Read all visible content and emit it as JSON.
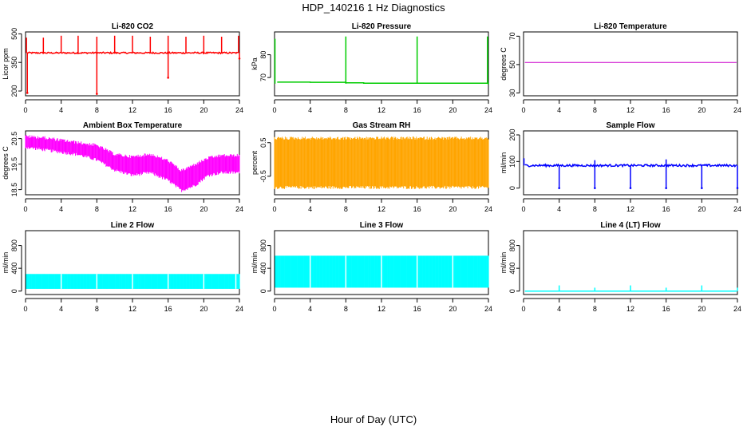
{
  "figure": {
    "title": "HDP_140216  1 Hz Diagnostics",
    "xlabel": "Hour of Day (UTC)"
  },
  "chart_data": [
    {
      "type": "line",
      "title": "Li-820 CO2",
      "ylabel": "Licor ppm",
      "color": "#ff0000",
      "xlim": [
        0,
        24
      ],
      "ylim": [
        175,
        510
      ],
      "xticks": [
        0,
        4,
        8,
        12,
        16,
        20,
        24
      ],
      "yticks": [
        200,
        350,
        500
      ],
      "ytick_labels": [
        "200",
        "350",
        "500"
      ],
      "baseline": 400,
      "noise": 4,
      "spikes": [
        [
          0.1,
          480
        ],
        [
          2.0,
          480
        ],
        [
          4.0,
          490
        ],
        [
          5.9,
          490
        ],
        [
          8.0,
          485
        ],
        [
          10.0,
          490
        ],
        [
          12.0,
          490
        ],
        [
          14.0,
          485
        ],
        [
          16.0,
          490
        ],
        [
          18.0,
          485
        ],
        [
          20.0,
          490
        ],
        [
          22.0,
          485
        ],
        [
          23.9,
          490
        ]
      ],
      "dips": [
        [
          0.2,
          190
        ],
        [
          8.0,
          185
        ],
        [
          16.0,
          270
        ],
        [
          24.0,
          370
        ]
      ]
    },
    {
      "type": "line",
      "title": "Li-820 Pressure",
      "ylabel": "kPa",
      "color": "#00cc00",
      "xlim": [
        0,
        24
      ],
      "ylim": [
        62,
        90
      ],
      "xticks": [
        0,
        4,
        8,
        12,
        16,
        20,
        24
      ],
      "yticks": [
        70,
        80
      ],
      "ytick_labels": [
        "70",
        "80"
      ],
      "segments": [
        [
          0.3,
          68.0
        ],
        [
          4.0,
          67.9
        ],
        [
          8.0,
          67.7
        ],
        [
          10.0,
          67.5
        ],
        [
          24.0,
          67.3
        ]
      ],
      "spikes": [
        [
          0.05,
          87
        ],
        [
          8.0,
          88
        ],
        [
          16.0,
          88
        ],
        [
          23.9,
          88
        ]
      ]
    },
    {
      "type": "line",
      "title": "Li-820 Temperature",
      "ylabel": "degrees C",
      "color": "#cc00cc",
      "xlim": [
        0,
        24
      ],
      "ylim": [
        28,
        73
      ],
      "xticks": [
        0,
        4,
        8,
        12,
        16,
        20,
        24
      ],
      "yticks": [
        30,
        50,
        70
      ],
      "ytick_labels": [
        "30",
        "50",
        "70"
      ],
      "constant": 51.5
    },
    {
      "type": "area",
      "title": "Ambient Box Temperature",
      "ylabel": "degrees C",
      "color": "#ff00ff",
      "xlim": [
        0,
        24
      ],
      "ylim": [
        18.3,
        20.8
      ],
      "xticks": [
        0,
        4,
        8,
        12,
        16,
        20,
        24
      ],
      "yticks": [
        18.5,
        19.5,
        20.5
      ],
      "ytick_labels": [
        "18.5",
        "19.5",
        "20.5"
      ],
      "upper": [
        [
          0,
          20.65
        ],
        [
          2,
          20.6
        ],
        [
          4,
          20.5
        ],
        [
          6,
          20.4
        ],
        [
          8,
          20.3
        ],
        [
          10,
          19.95
        ],
        [
          12,
          19.85
        ],
        [
          14,
          19.95
        ],
        [
          16,
          19.7
        ],
        [
          17.5,
          19.3
        ],
        [
          19,
          19.55
        ],
        [
          20.5,
          19.8
        ],
        [
          22,
          19.9
        ],
        [
          24,
          19.9
        ]
      ],
      "lower": [
        [
          0,
          20.1
        ],
        [
          2,
          20.0
        ],
        [
          4,
          19.9
        ],
        [
          6,
          19.8
        ],
        [
          8,
          19.6
        ],
        [
          10,
          19.2
        ],
        [
          12,
          19.0
        ],
        [
          14,
          19.1
        ],
        [
          16,
          18.8
        ],
        [
          17.5,
          18.4
        ],
        [
          19,
          18.6
        ],
        [
          20.5,
          19.0
        ],
        [
          22,
          19.1
        ],
        [
          24,
          19.1
        ]
      ]
    },
    {
      "type": "area",
      "title": "Gas Stream RH",
      "ylabel": "percent",
      "color": "#ffa500",
      "xlim": [
        0,
        24
      ],
      "ylim": [
        -1.05,
        0.85
      ],
      "xticks": [
        0,
        4,
        8,
        12,
        16,
        20,
        24
      ],
      "yticks": [
        -0.5,
        0.5
      ],
      "ytick_labels": [
        "-0.5",
        "0.5"
      ],
      "upper": [
        [
          0,
          0.68
        ],
        [
          24,
          0.68
        ]
      ],
      "lower": [
        [
          0,
          -0.88
        ],
        [
          24,
          -0.88
        ]
      ]
    },
    {
      "type": "line",
      "title": "Sample Flow",
      "ylabel": "ml/min",
      "color": "#0000ff",
      "xlim": [
        0,
        24
      ],
      "ylim": [
        -25,
        215
      ],
      "xticks": [
        0,
        4,
        8,
        12,
        16,
        20,
        24
      ],
      "yticks": [
        0,
        100,
        200
      ],
      "ytick_labels": [
        "0",
        "100",
        "200"
      ],
      "baseline": 85,
      "noise": 4,
      "spikes": [
        [
          0.05,
          112
        ],
        [
          8.0,
          105
        ],
        [
          16.0,
          108
        ]
      ],
      "dips": [
        [
          4.0,
          0
        ],
        [
          8.0,
          0
        ],
        [
          12.0,
          0
        ],
        [
          16.0,
          0
        ],
        [
          20.0,
          0
        ],
        [
          24.0,
          0
        ]
      ]
    },
    {
      "type": "area",
      "title": "Line 2 Flow",
      "ylabel": "ml/min",
      "color": "#00ffff",
      "xlim": [
        0,
        24
      ],
      "ylim": [
        -60,
        1060
      ],
      "xticks": [
        0,
        4,
        8,
        12,
        16,
        20,
        24
      ],
      "yticks": [
        0,
        400,
        800
      ],
      "ytick_labels": [
        "0",
        "400",
        "800"
      ],
      "upper": [
        [
          0.1,
          300
        ],
        [
          24,
          300
        ]
      ],
      "lower": [
        [
          0.1,
          40
        ],
        [
          24,
          40
        ]
      ],
      "gaps": [
        4,
        8,
        12,
        16,
        20,
        23.6
      ]
    },
    {
      "type": "area",
      "title": "Line 3 Flow",
      "ylabel": "ml/min",
      "color": "#00ffff",
      "xlim": [
        0,
        24
      ],
      "ylim": [
        -60,
        1060
      ],
      "xticks": [
        0,
        4,
        8,
        12,
        16,
        20,
        24
      ],
      "yticks": [
        0,
        400,
        800
      ],
      "ytick_labels": [
        "0",
        "400",
        "800"
      ],
      "upper": [
        [
          0.1,
          620
        ],
        [
          24,
          620
        ]
      ],
      "lower": [
        [
          0.1,
          60
        ],
        [
          24,
          60
        ]
      ],
      "gaps": [
        4,
        8,
        12,
        16,
        20
      ]
    },
    {
      "type": "line",
      "title": "Line 4 (LT) Flow",
      "ylabel": "ml/min",
      "color": "#00ffff",
      "xlim": [
        0,
        24
      ],
      "ylim": [
        -60,
        1060
      ],
      "xticks": [
        0,
        4,
        8,
        12,
        16,
        20,
        24
      ],
      "yticks": [
        0,
        400,
        800
      ],
      "ytick_labels": [
        "0",
        "400",
        "800"
      ],
      "baseline": 0,
      "noise": 0,
      "spikes": [
        [
          4.0,
          100
        ],
        [
          8.0,
          60
        ],
        [
          12.0,
          100
        ],
        [
          16.0,
          60
        ],
        [
          20.0,
          100
        ],
        [
          24.0,
          60
        ]
      ]
    }
  ]
}
